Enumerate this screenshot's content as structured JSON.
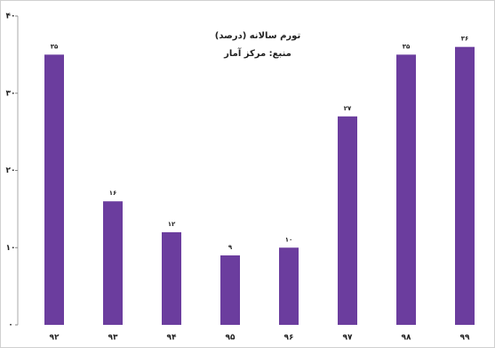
{
  "chart_data": {
    "type": "bar",
    "title": "تورم سالانه (درصد)",
    "subtitle": "منبع: مرکز آمار",
    "categories": [
      "۹۲",
      "۹۳",
      "۹۴",
      "۹۵",
      "۹۶",
      "۹۷",
      "۹۸",
      "۹۹"
    ],
    "values": [
      35,
      16,
      12,
      9,
      10,
      27,
      35,
      36
    ],
    "value_labels": [
      "۳۵",
      "۱۶",
      "۱۲",
      "۹",
      "۱۰",
      "۲۷",
      "۳۵",
      "۳۶"
    ],
    "color": "#6b3d9e",
    "ylim": [
      0,
      40
    ],
    "yticks": [
      {
        "value": 0,
        "label": "۰"
      },
      {
        "value": 10,
        "label": "۱۰"
      },
      {
        "value": 20,
        "label": "۲۰"
      },
      {
        "value": 30,
        "label": "۳۰"
      },
      {
        "value": 40,
        "label": "۴۰"
      }
    ],
    "grid": false
  }
}
